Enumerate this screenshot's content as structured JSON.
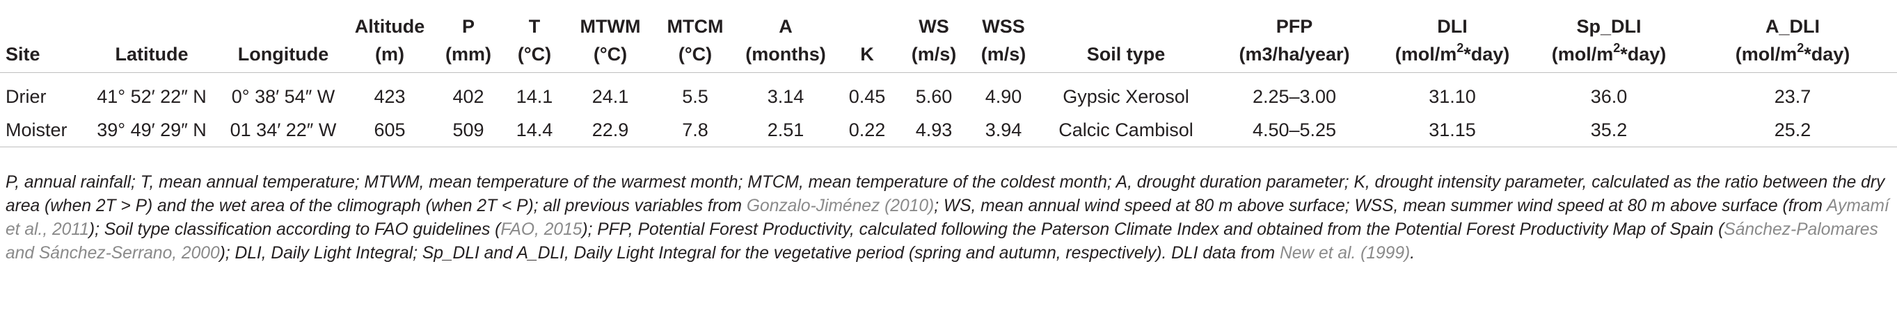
{
  "columns": [
    {
      "line1": "",
      "line2": "Site"
    },
    {
      "line1": "",
      "line2": "Latitude"
    },
    {
      "line1": "",
      "line2": "Longitude"
    },
    {
      "line1": "Altitude",
      "line2": "(m)"
    },
    {
      "line1": "P",
      "line2": "(mm)"
    },
    {
      "line1": "T",
      "line2": "(°C)"
    },
    {
      "line1": "MTWM",
      "line2": "(°C)"
    },
    {
      "line1": "MTCM",
      "line2": "(°C)"
    },
    {
      "line1": "A",
      "line2": "(months)"
    },
    {
      "line1": "",
      "line2": "K"
    },
    {
      "line1": "WS",
      "line2": "(m/s)"
    },
    {
      "line1": "WSS",
      "line2": "(m/s)"
    },
    {
      "line1": "",
      "line2": "Soil type"
    },
    {
      "line1": "PFP",
      "line2": "(m3/ha/year)"
    },
    {
      "line1": "DLI",
      "line2_a": "(mol/m",
      "line2_sup": "2",
      "line2_b": "*day)"
    },
    {
      "line1": "Sp_DLI",
      "line2_a": "(mol/m",
      "line2_sup": "2",
      "line2_b": "*day)"
    },
    {
      "line1": "A_DLI",
      "line2_a": "(mol/m",
      "line2_sup": "2",
      "line2_b": "*day)"
    }
  ],
  "rows": [
    [
      "Drier",
      "41° 52′ 22″ N",
      "0° 38′ 54″ W",
      "423",
      "402",
      "14.1",
      "24.1",
      "5.5",
      "3.14",
      "0.45",
      "5.60",
      "4.90",
      "Gypsic Xerosol",
      "2.25–3.00",
      "31.10",
      "36.0",
      "23.7"
    ],
    [
      "Moister",
      "39° 49′ 29″ N",
      "01 34′ 22″ W",
      "605",
      "509",
      "14.4",
      "22.9",
      "7.8",
      "2.51",
      "0.22",
      "4.93",
      "3.94",
      "Calcic Cambisol",
      "4.50–5.25",
      "31.15",
      "35.2",
      "25.2"
    ]
  ],
  "footnote": {
    "p1": "P, annual rainfall; T, mean annual temperature; MTWM, mean temperature of the warmest month; MTCM, mean temperature of the coldest month; A, drought duration parameter; K, drought intensity parameter, calculated as the ratio between the dry area (when 2T > P) and the wet area of the climograph (when 2T < P); all previous variables from ",
    "ref1": "Gonzalo-Jiménez (2010)",
    "p2": "; WS, mean annual wind speed at 80 m above surface; WSS, mean summer wind speed at 80 m above surface (from ",
    "ref2": "Aymamí et al., 2011",
    "p3": "); Soil type classification according to FAO guidelines (",
    "ref3": "FAO, 2015",
    "p4": "); PFP, Potential Forest Productivity, calculated following the Paterson Climate Index and obtained from the Potential Forest Productivity Map of Spain (",
    "ref4": "Sánchez-Palomares and Sánchez-Serrano, 2000",
    "p5": "); DLI, Daily Light Integral; Sp_DLI and A_DLI, Daily Light Integral for the vegetative period (spring and autumn, respectively). DLI data from ",
    "ref5": "New et al. (1999)",
    "p6": "."
  }
}
